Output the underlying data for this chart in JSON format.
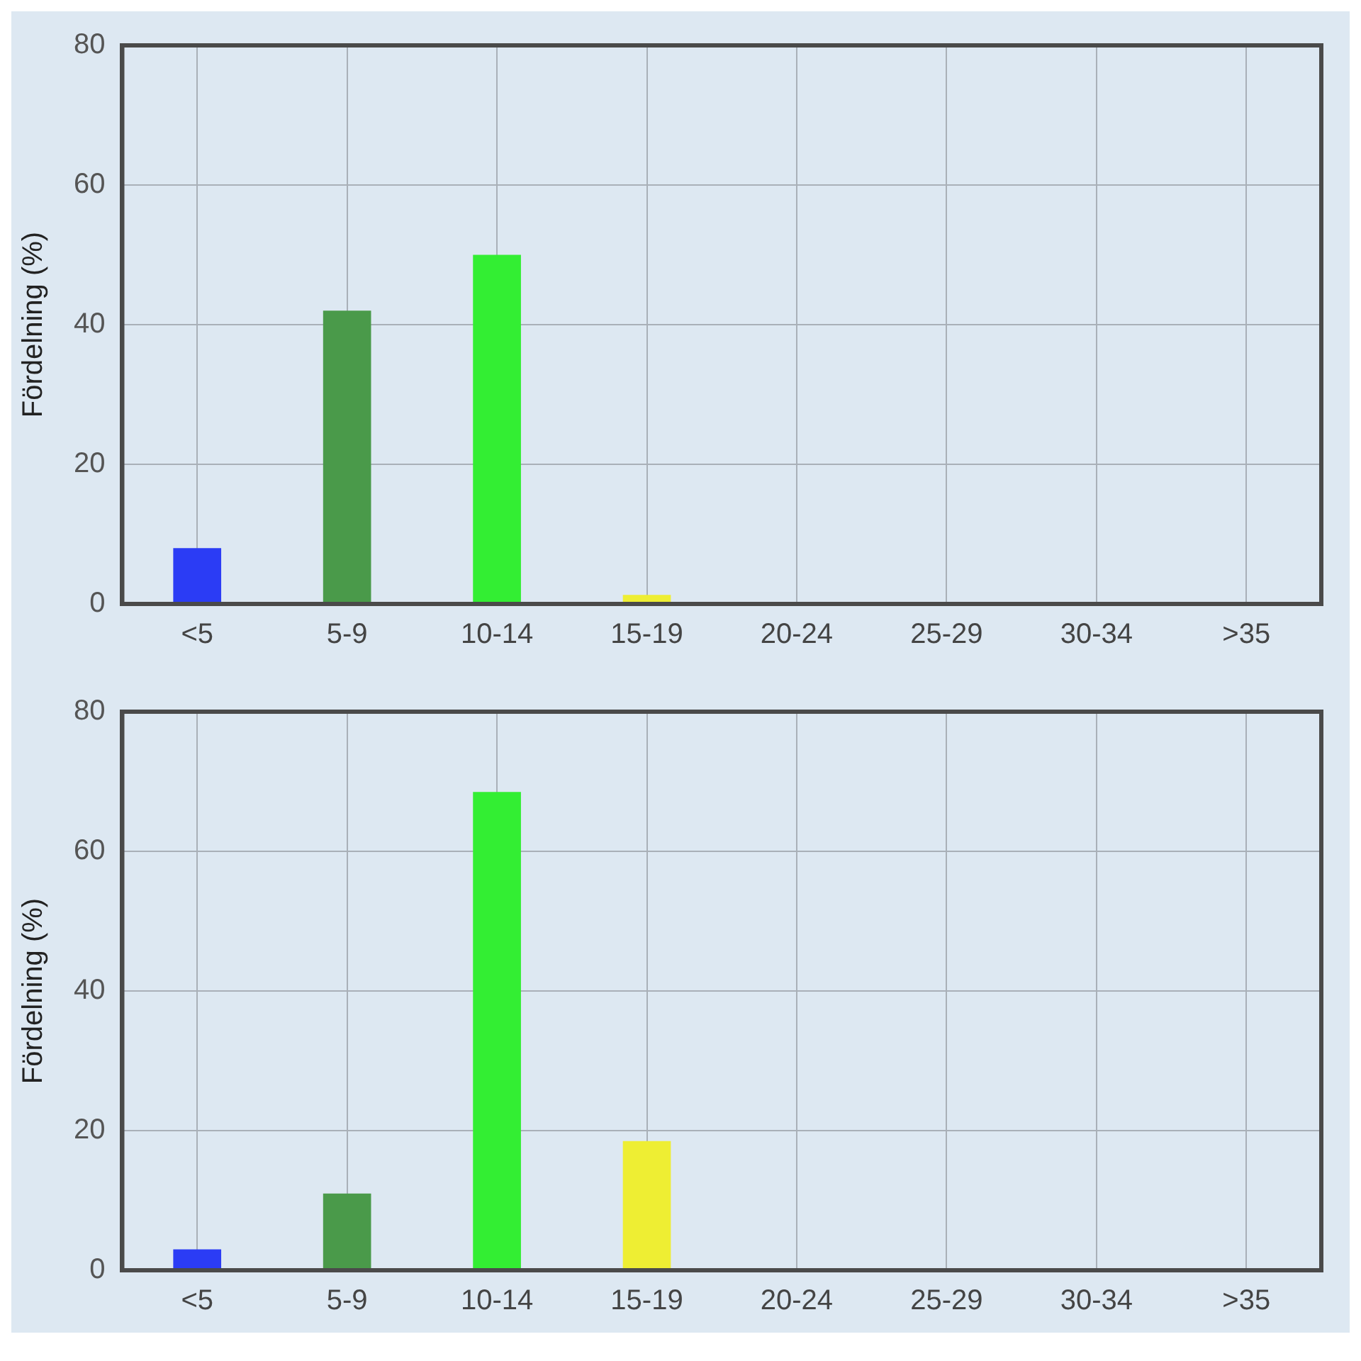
{
  "chart_data": [
    {
      "type": "bar",
      "ylabel": "Fördelning (%)",
      "categories": [
        "<5",
        "5-9",
        "10-14",
        "15-19",
        "20-24",
        "25-29",
        "30-34",
        ">35"
      ],
      "values": [
        8,
        42,
        50,
        1.3,
        0,
        0,
        0,
        0
      ],
      "colors": [
        "#2b3cf5",
        "#4a9a4a",
        "#33ee33",
        "#eeee33",
        "#2b3cf5",
        "#2b3cf5",
        "#2b3cf5",
        "#2b3cf5"
      ],
      "ylim": [
        0,
        80
      ],
      "yticks": [
        0,
        20,
        40,
        60,
        80
      ],
      "grid": true,
      "legend": false
    },
    {
      "type": "bar",
      "ylabel": "Fördelning (%)",
      "categories": [
        "<5",
        "5-9",
        "10-14",
        "15-19",
        "20-24",
        "25-29",
        "30-34",
        ">35"
      ],
      "values": [
        3,
        11,
        68.5,
        18.5,
        0,
        0,
        0,
        0
      ],
      "colors": [
        "#2b3cf5",
        "#4a9a4a",
        "#33ee33",
        "#eeee33",
        "#2b3cf5",
        "#2b3cf5",
        "#2b3cf5",
        "#2b3cf5"
      ],
      "ylim": [
        0,
        80
      ],
      "yticks": [
        0,
        20,
        40,
        60,
        80
      ],
      "grid": true,
      "legend": false
    }
  ]
}
